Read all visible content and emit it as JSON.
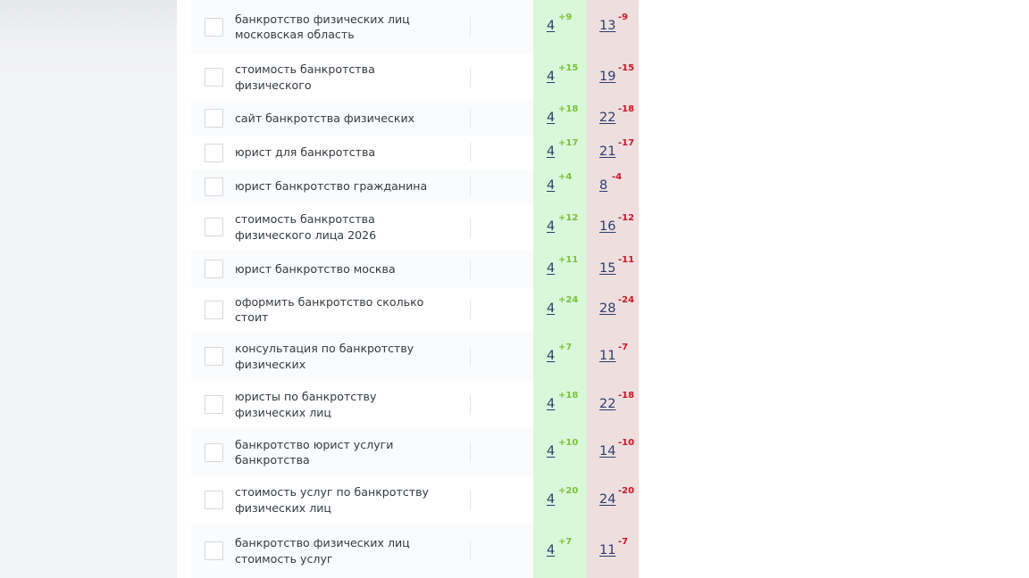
{
  "rows": [
    {
      "keyword": [
        "банкротство физических лиц",
        "московская область"
      ],
      "position": "4",
      "position_delta": "+9",
      "previous": "13",
      "previous_delta": "-9"
    },
    {
      "keyword": [
        "стоимость банкротства",
        "физического"
      ],
      "position": "4",
      "position_delta": "+15",
      "previous": "19",
      "previous_delta": "-15"
    },
    {
      "keyword": [
        "сайт банкротства физических"
      ],
      "position": "4",
      "position_delta": "+18",
      "previous": "22",
      "previous_delta": "-18"
    },
    {
      "keyword": [
        "юрист для банкротства"
      ],
      "position": "4",
      "position_delta": "+17",
      "previous": "21",
      "previous_delta": "-17"
    },
    {
      "keyword": [
        "юрист банкротство гражданина"
      ],
      "position": "4",
      "position_delta": "+4",
      "previous": "8",
      "previous_delta": "-4"
    },
    {
      "keyword": [
        "стоимость банкротства",
        "физического лица 2026"
      ],
      "position": "4",
      "position_delta": "+12",
      "previous": "16",
      "previous_delta": "-12"
    },
    {
      "keyword": [
        "юрист банкротство москва"
      ],
      "position": "4",
      "position_delta": "+11",
      "previous": "15",
      "previous_delta": "-11"
    },
    {
      "keyword": [
        "оформить банкротство сколько",
        "стоит"
      ],
      "position": "4",
      "position_delta": "+24",
      "previous": "28",
      "previous_delta": "-24"
    },
    {
      "keyword": [
        "консультация по банкротству",
        "физических"
      ],
      "position": "4",
      "position_delta": "+7",
      "previous": "11",
      "previous_delta": "-7"
    },
    {
      "keyword": [
        "юристы по банкротству",
        "физических лиц"
      ],
      "position": "4",
      "position_delta": "+18",
      "previous": "22",
      "previous_delta": "-18"
    },
    {
      "keyword": [
        "банкротство юрист услуги",
        "банкротства"
      ],
      "position": "4",
      "position_delta": "+10",
      "previous": "14",
      "previous_delta": "-10"
    },
    {
      "keyword": [
        "стоимость услуг по банкротству",
        "физических лиц"
      ],
      "position": "4",
      "position_delta": "+20",
      "previous": "24",
      "previous_delta": "-20"
    },
    {
      "keyword": [
        "банкротство физических лиц",
        "стоимость услуг"
      ],
      "position": "4",
      "position_delta": "+7",
      "previous": "11",
      "previous_delta": "-7"
    }
  ]
}
